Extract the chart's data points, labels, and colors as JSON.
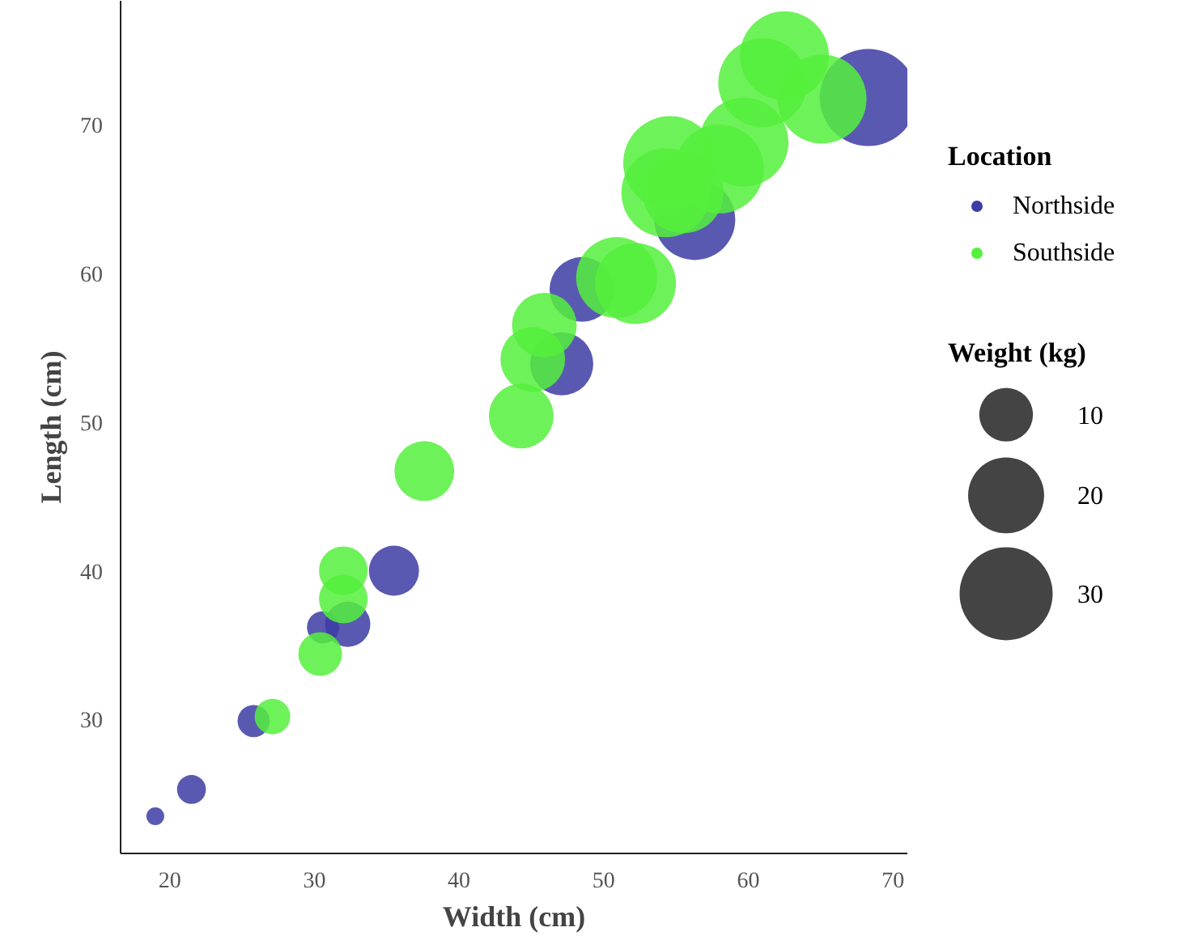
{
  "chart_data": {
    "type": "bubble",
    "xlabel": "Width (cm)",
    "ylabel": "Length (cm)",
    "legend_title": "Location",
    "legend": "right",
    "grid": false,
    "xlim": [
      16.6,
      71
    ],
    "ylim": [
      21,
      78.3
    ],
    "xticks": [
      20,
      30,
      40,
      50,
      60,
      70
    ],
    "yticks": [
      30,
      40,
      50,
      60,
      70
    ],
    "size_legend": [
      10,
      20,
      30
    ],
    "annotations": [
      "Weight (kg)"
    ],
    "series": [
      {
        "name": "Northside",
        "color": "#3c3ca5",
        "x": [
          19.0,
          21.5,
          25.8,
          30.6,
          32.3,
          35.5,
          47.1,
          48.5,
          56.3,
          68.3
        ],
        "values": [
          23.5,
          25.3,
          29.9,
          36.2,
          36.4,
          40.0,
          53.9,
          58.9,
          63.6,
          71.8
        ],
        "sizes": [
          1.1,
          2.9,
          3.6,
          3.6,
          7.1,
          8.7,
          13.8,
          14.5,
          22.7,
          32.7
        ]
      },
      {
        "name": "Southside",
        "color": "#55f03c",
        "x": [
          27.1,
          30.4,
          32.0,
          32.0,
          37.6,
          44.3,
          45.1,
          45.9,
          50.9,
          52.2,
          54.3,
          54.6,
          58.0,
          59.7,
          61.0,
          62.5,
          65.1,
          55.5
        ],
        "values": [
          30.2,
          34.4,
          38.1,
          40.0,
          46.7,
          50.4,
          54.2,
          56.5,
          59.7,
          59.3,
          65.4,
          67.4,
          67.0,
          68.8,
          72.8,
          74.6,
          71.7,
          65.4
        ],
        "sizes": [
          4.4,
          6.6,
          8.2,
          8.2,
          12.4,
          14.5,
          14.5,
          14.5,
          22.7,
          22.7,
          27.4,
          30.5,
          27.4,
          27.4,
          27.4,
          27.4,
          27.4,
          22.7
        ]
      }
    ]
  }
}
